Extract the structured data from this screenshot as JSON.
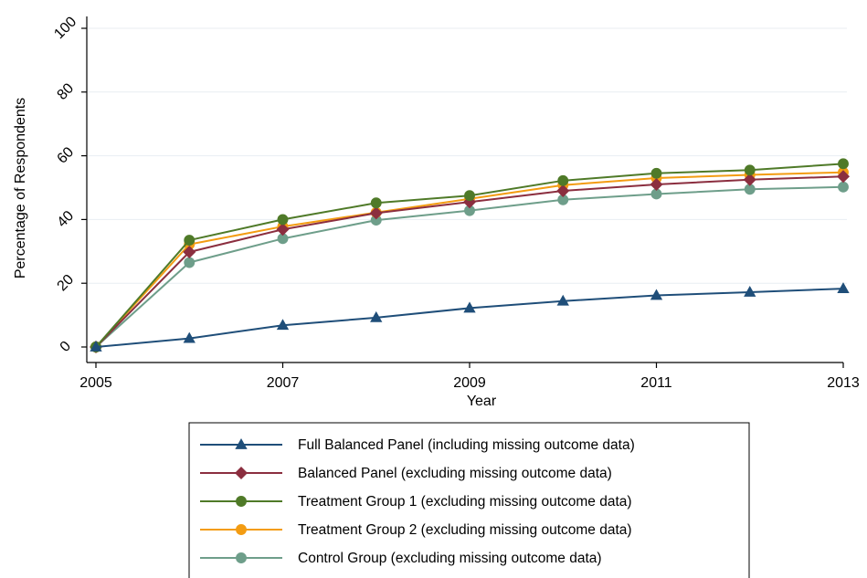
{
  "chart_data": {
    "type": "line",
    "title": "",
    "xlabel": "Year",
    "ylabel": "Percentage of Respondents",
    "x": [
      2005,
      2006,
      2007,
      2008,
      2009,
      2010,
      2011,
      2012,
      2013
    ],
    "x_tick_values": [
      2005,
      2007,
      2009,
      2011,
      2013
    ],
    "x_tick_labels": [
      "2005",
      "2007",
      "2009",
      "2011",
      "2013"
    ],
    "y_tick_values": [
      0,
      20,
      40,
      60,
      80,
      100
    ],
    "y_tick_labels": [
      "0",
      "20",
      "40",
      "60",
      "80",
      "100"
    ],
    "xlim": [
      2005,
      2013
    ],
    "ylim": [
      -5,
      102
    ],
    "grid": "horizontal",
    "legend_position": "bottom",
    "series": [
      {
        "name": "Full Balanced Panel (including missing outcome data)",
        "color": "#1f4e79",
        "marker": "triangle",
        "values": [
          0,
          2.7,
          6.8,
          9.2,
          12.2,
          14.4,
          16.2,
          17.2,
          18.3
        ]
      },
      {
        "name": "Balanced Panel (excluding missing outcome data)",
        "color": "#8b2e3f",
        "marker": "diamond",
        "values": [
          0,
          29.8,
          36.9,
          42.0,
          45.5,
          49.0,
          51.0,
          52.5,
          53.5
        ]
      },
      {
        "name": "Treatment Group 1 (excluding missing outcome data)",
        "color": "#4f7a28",
        "marker": "circle",
        "values": [
          0,
          33.5,
          40.0,
          45.2,
          47.5,
          52.2,
          54.5,
          55.5,
          57.5
        ]
      },
      {
        "name": "Treatment Group 2 (excluding missing outcome data)",
        "color": "#f39c12",
        "marker": "circle",
        "values": [
          0,
          32.2,
          37.8,
          42.2,
          46.5,
          50.8,
          53.0,
          54.0,
          54.8
        ]
      },
      {
        "name": "Control Group (excluding missing outcome data)",
        "color": "#6e9e8a",
        "marker": "circle",
        "values": [
          0,
          26.5,
          34.0,
          39.8,
          42.8,
          46.2,
          48.0,
          49.5,
          50.2
        ]
      }
    ]
  }
}
